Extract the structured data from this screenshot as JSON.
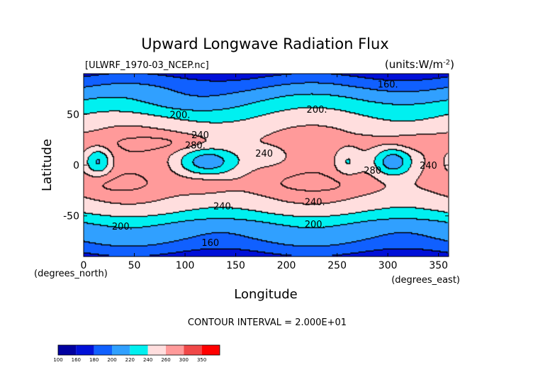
{
  "chart_data": {
    "type": "heatmap",
    "title": "Upward Longwave Radiation Flux",
    "subtitle_left": "[ULWRF_1970-03_NCEP.nc]",
    "subtitle_right": "(units:W/m^-2)",
    "xlabel": "Longitude",
    "ylabel": "Latitude",
    "x_unit_label": "(degrees_east)",
    "y_unit_label": "(degrees_north)",
    "xlim": [
      0,
      360
    ],
    "ylim": [
      -90,
      90
    ],
    "x_ticks": [
      0,
      50,
      100,
      150,
      200,
      250,
      300,
      350
    ],
    "y_ticks": [
      -50,
      0,
      50
    ],
    "contour_interval_text": "CONTOUR INTERVAL = 2.000E+01",
    "contour_labels": [
      {
        "text": "160.",
        "lon": 300,
        "lat": 80
      },
      {
        "text": "200.",
        "lon": 95,
        "lat": 50
      },
      {
        "text": "200.",
        "lon": 230,
        "lat": 55
      },
      {
        "text": "240",
        "lon": 115,
        "lat": 30
      },
      {
        "text": "280.",
        "lon": 110,
        "lat": 20
      },
      {
        "text": "240",
        "lon": 178,
        "lat": 12
      },
      {
        "text": "280",
        "lon": 285,
        "lat": -5
      },
      {
        "text": "240",
        "lon": 340,
        "lat": 0
      },
      {
        "text": "240.",
        "lon": 138,
        "lat": -40
      },
      {
        "text": "240.",
        "lon": 228,
        "lat": -36
      },
      {
        "text": "200.",
        "lon": 38,
        "lat": -60
      },
      {
        "text": "200.",
        "lon": 228,
        "lat": -58
      },
      {
        "text": "160",
        "lon": 125,
        "lat": -76
      }
    ],
    "colorbar": {
      "levels": [
        "100",
        "160",
        "180",
        "200",
        "220",
        "240",
        "260",
        "300",
        "350"
      ],
      "colors": [
        "#0000a0",
        "#0010d8",
        "#1060ff",
        "#30a0ff",
        "#00f0f0",
        "#ffdede",
        "#ff9a9a",
        "#f04848",
        "#ff0000"
      ]
    },
    "contour_levels": [
      160,
      180,
      200,
      220,
      240,
      260,
      280,
      300
    ]
  }
}
